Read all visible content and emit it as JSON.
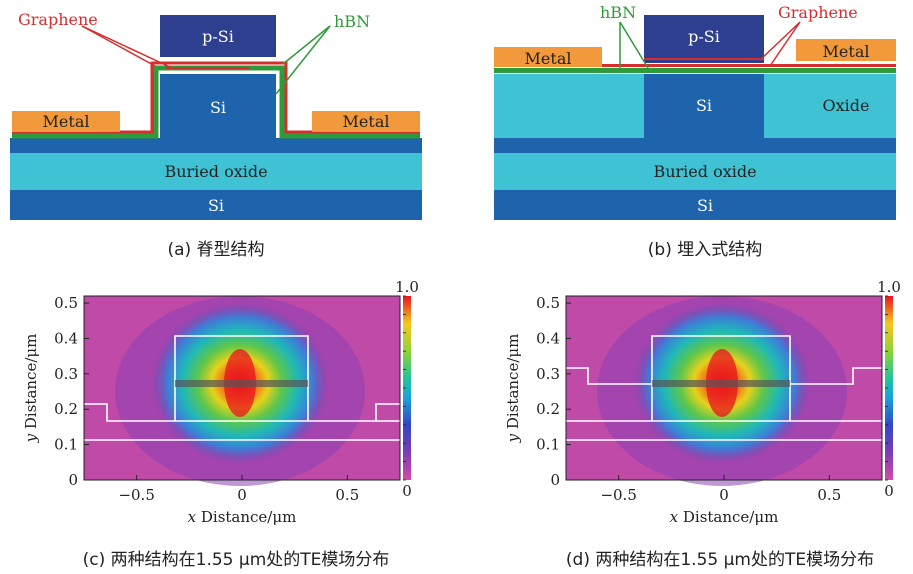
{
  "panel_a": {
    "graphene_label": "Graphene",
    "hbn_label": "hBN",
    "top_label": "p-Si",
    "core_label": "Si",
    "metal_left": "Metal",
    "metal_right": "Metal",
    "buried_label": "Buried oxide",
    "substrate_label": "Si",
    "caption": "(a) 脊型结构"
  },
  "panel_b": {
    "hbn_label": "hBN",
    "graphene_label": "Graphene",
    "top_label": "p-Si",
    "core_label": "Si",
    "metal_left": "Metal",
    "metal_right": "Metal",
    "oxide_label": "Oxide",
    "buried_label": "Buried oxide",
    "substrate_label": "Si",
    "caption": "(b) 埋入式结构"
  },
  "colors": {
    "graphene": "#d62e2e",
    "hbn": "#2f9a3a",
    "psi": "#2e3f8f",
    "si": "#1e64ac",
    "oxide": "#3fc2d4",
    "metal": "#f29a3b"
  },
  "chart_data": [
    {
      "type": "heatmap",
      "caption": "(c) 两种结构在1.55 μm处的TE模场分布",
      "xlabel_italic": "x",
      "xlabel_rest": " Distance/μm",
      "ylabel_italic": "y",
      "ylabel_rest": " Distance/μm",
      "xlim": [
        -0.75,
        0.75
      ],
      "ylim": [
        0,
        0.52
      ],
      "xticks": [
        -0.5,
        0,
        0.5
      ],
      "xtick_labels": [
        "−0.5",
        "0",
        "0.5"
      ],
      "yticks": [
        0,
        0.1,
        0.2,
        0.3,
        0.4,
        0.5
      ],
      "ytick_labels": [
        "0",
        "0.1",
        "0.2",
        "0.3",
        "0.4",
        "0.5"
      ],
      "colorbar": {
        "min": 0,
        "max": 1.0,
        "min_label": "0",
        "max_label": "1.0"
      },
      "peak": {
        "x": 0,
        "y": 0.24,
        "value": 1.0
      }
    },
    {
      "type": "heatmap",
      "caption": "(d) 两种结构在1.55 μm处的TE模场分布",
      "xlabel_italic": "x",
      "xlabel_rest": " Distance/μm",
      "ylabel_italic": "y",
      "ylabel_rest": " Distance/μm",
      "xlim": [
        -0.75,
        0.75
      ],
      "ylim": [
        0,
        0.52
      ],
      "xticks": [
        -0.5,
        0,
        0.5
      ],
      "xtick_labels": [
        "−0.5",
        "0",
        "0.5"
      ],
      "yticks": [
        0,
        0.1,
        0.2,
        0.3,
        0.4,
        0.5
      ],
      "ytick_labels": [
        "0",
        "0.1",
        "0.2",
        "0.3",
        "0.4",
        "0.5"
      ],
      "colorbar": {
        "min": 0,
        "max": 1.0,
        "min_label": "0",
        "max_label": "1.0"
      },
      "peak": {
        "x": 0,
        "y": 0.24,
        "value": 1.0
      }
    }
  ]
}
